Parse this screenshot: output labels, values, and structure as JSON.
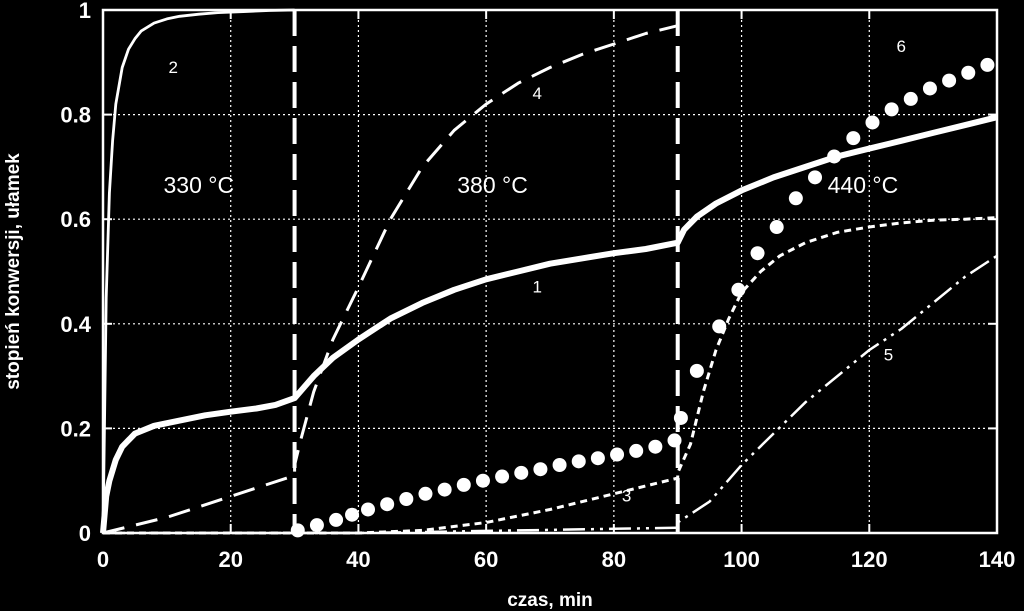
{
  "chart_data": {
    "type": "line",
    "title": "",
    "xlabel": "czas, min",
    "ylabel": "stopień konwersji, ułamek",
    "xlim": [
      0,
      140
    ],
    "ylim": [
      0,
      1
    ],
    "xticks": [
      "0",
      "20",
      "40",
      "60",
      "80",
      "100",
      "120",
      "140"
    ],
    "yticks": [
      "0",
      "0.2",
      "0.4",
      "0.6",
      "0.8",
      "1"
    ],
    "grid": true,
    "legend": "none",
    "colors": {
      "background": "#000000",
      "foreground": "#ffffff"
    },
    "stage_boundaries": [
      30,
      90
    ],
    "annotations": [
      {
        "text": "330 °C",
        "x": 15,
        "y": 0.65
      },
      {
        "text": "380 °C",
        "x": 61,
        "y": 0.65
      },
      {
        "text": "440 °C",
        "x": 119,
        "y": 0.65
      }
    ],
    "series": [
      {
        "label": "1",
        "style": "thick-solid",
        "x": [
          0,
          0.5,
          1,
          2,
          3,
          5,
          8,
          12,
          16,
          20,
          24,
          27,
          30,
          33,
          36,
          40,
          45,
          50,
          55,
          60,
          65,
          70,
          75,
          80,
          85,
          90,
          91,
          93,
          96,
          100,
          105,
          110,
          115,
          120,
          125,
          130,
          135,
          140
        ],
        "y": [
          0,
          0.07,
          0.1,
          0.14,
          0.165,
          0.19,
          0.205,
          0.215,
          0.225,
          0.232,
          0.238,
          0.245,
          0.258,
          0.3,
          0.335,
          0.37,
          0.41,
          0.44,
          0.465,
          0.485,
          0.5,
          0.515,
          0.525,
          0.535,
          0.543,
          0.555,
          0.58,
          0.605,
          0.63,
          0.655,
          0.68,
          0.7,
          0.72,
          0.735,
          0.75,
          0.765,
          0.78,
          0.795
        ],
        "label_at": [
          68,
          0.46
        ]
      },
      {
        "label": "2",
        "style": "thin-solid",
        "x": [
          0,
          0.5,
          1,
          1.5,
          2,
          3,
          4,
          5,
          6,
          8,
          10,
          12,
          15,
          18,
          22,
          26,
          30
        ],
        "y": [
          0,
          0.45,
          0.65,
          0.75,
          0.82,
          0.89,
          0.925,
          0.945,
          0.96,
          0.975,
          0.983,
          0.988,
          0.992,
          0.995,
          0.997,
          0.999,
          1.0
        ],
        "label_at": [
          11,
          0.88
        ]
      },
      {
        "label": "3",
        "style": "short-dash",
        "x": [
          0,
          30,
          30,
          40,
          50,
          60,
          70,
          80,
          90,
          90,
          92,
          94,
          96,
          98,
          100,
          103,
          106,
          110,
          115,
          120,
          125,
          130,
          135,
          140
        ],
        "y": [
          0,
          0,
          0,
          0,
          0.005,
          0.02,
          0.045,
          0.075,
          0.105,
          0.115,
          0.17,
          0.27,
          0.35,
          0.41,
          0.46,
          0.5,
          0.53,
          0.555,
          0.575,
          0.585,
          0.593,
          0.598,
          0.6,
          0.603
        ],
        "label_at": [
          82,
          0.06
        ]
      },
      {
        "label": "4",
        "style": "long-dash",
        "x": [
          0,
          10,
          20,
          30,
          30,
          31,
          33,
          36,
          40,
          45,
          50,
          55,
          60,
          65,
          70,
          75,
          80,
          85,
          90
        ],
        "y": [
          0,
          0.03,
          0.07,
          0.11,
          0.13,
          0.18,
          0.27,
          0.37,
          0.47,
          0.6,
          0.7,
          0.77,
          0.82,
          0.86,
          0.89,
          0.915,
          0.935,
          0.955,
          0.97
        ],
        "label_at": [
          68,
          0.83
        ]
      },
      {
        "label": "5",
        "style": "dash-dot-dot",
        "x": [
          0,
          30,
          30,
          40,
          50,
          60,
          70,
          80,
          90,
          90,
          95,
          100,
          105,
          110,
          115,
          120,
          125,
          130,
          135,
          140
        ],
        "y": [
          0,
          0,
          0,
          0,
          0.002,
          0.004,
          0.006,
          0.008,
          0.01,
          0.02,
          0.06,
          0.13,
          0.19,
          0.25,
          0.3,
          0.35,
          0.39,
          0.44,
          0.49,
          0.53
        ],
        "label_at": [
          123,
          0.33
        ]
      },
      {
        "label": "6",
        "style": "markers",
        "x": [
          30.5,
          33.5,
          36.5,
          39,
          41.5,
          44.5,
          47.5,
          50.5,
          53.5,
          56.5,
          59.5,
          62.5,
          65.5,
          68.5,
          71.5,
          74.5,
          77.5,
          80.5,
          83.5,
          86.5,
          89.5,
          90.5,
          93,
          96.5,
          99.5,
          102.5,
          105.5,
          108.5,
          111.5,
          114.5,
          117.5,
          120.5,
          123.5,
          126.5,
          129.5,
          132.5,
          135.5,
          138.5
        ],
        "y": [
          0.005,
          0.015,
          0.025,
          0.035,
          0.045,
          0.055,
          0.065,
          0.075,
          0.083,
          0.092,
          0.1,
          0.108,
          0.115,
          0.122,
          0.13,
          0.137,
          0.143,
          0.15,
          0.157,
          0.165,
          0.177,
          0.22,
          0.31,
          0.395,
          0.465,
          0.535,
          0.585,
          0.64,
          0.68,
          0.72,
          0.755,
          0.785,
          0.81,
          0.83,
          0.85,
          0.865,
          0.88,
          0.895
        ],
        "label_at": [
          125,
          0.92
        ]
      }
    ]
  }
}
